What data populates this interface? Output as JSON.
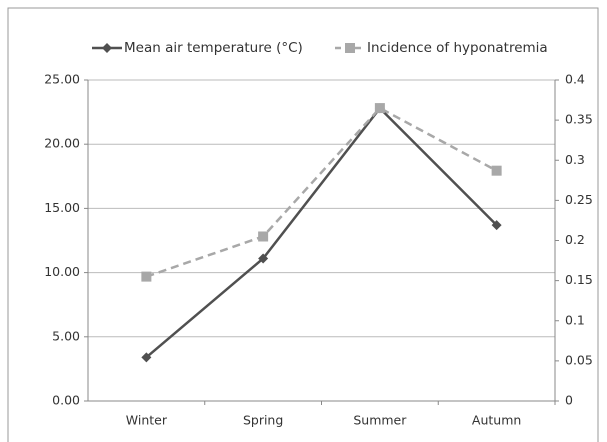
{
  "chart_data": {
    "type": "line",
    "legend": "top",
    "grid": true,
    "categories": [
      "Winter",
      "Spring",
      "Summer",
      "Autumn"
    ],
    "series": [
      {
        "name": "Mean air temperature (°C)",
        "color": "#505050",
        "style": "solid",
        "marker": "diamond",
        "values": [
          3.4,
          11.1,
          22.8,
          13.7
        ]
      },
      {
        "name": "Incidence of hyponatremia",
        "color": "#a8a8a8",
        "style": "dashed",
        "marker": "square",
        "axis": "y2",
        "values": [
          0.155,
          0.205,
          0.365,
          0.287
        ]
      }
    ],
    "ylim": [
      0,
      25
    ],
    "yticks": [
      {
        "value": 0,
        "label": "0.00"
      },
      {
        "value": 5,
        "label": "5.00"
      },
      {
        "value": 10,
        "label": "10.00"
      },
      {
        "value": 15,
        "label": "15.00"
      },
      {
        "value": 20,
        "label": "20.00"
      },
      {
        "value": 25,
        "label": "25.00"
      }
    ],
    "y2lim": [
      0,
      0.4
    ],
    "y2ticks": [
      0,
      0.05,
      0.1,
      0.15,
      0.2,
      0.25,
      0.3,
      0.35,
      0.4
    ]
  }
}
